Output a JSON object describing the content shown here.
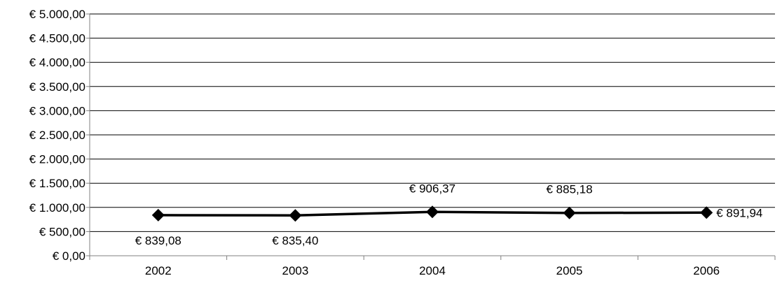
{
  "chart_data": {
    "type": "line",
    "title": "",
    "xlabel": "",
    "ylabel": "",
    "categories": [
      "2002",
      "2003",
      "2004",
      "2005",
      "2006"
    ],
    "series": [
      {
        "values": [
          839.08,
          835.4,
          906.37,
          885.18,
          891.94
        ],
        "labels": [
          "€ 839,08",
          "€ 835,40",
          "€ 906,37",
          "€ 885,18",
          "€ 891,94"
        ],
        "color": "#000000",
        "marker": "diamond"
      }
    ],
    "ylim": [
      0,
      5000
    ],
    "ytick_values": [
      0,
      500,
      1000,
      1500,
      2000,
      2500,
      3000,
      3500,
      4000,
      4500,
      5000
    ],
    "ytick_labels": [
      "€ 0,00",
      "€ 500,00",
      "€ 1.000,00",
      "€ 1.500,00",
      "€ 2.000,00",
      "€ 2.500,00",
      "€ 3.000,00",
      "€ 3.500,00",
      "€ 4.000,00",
      "€ 4.500,00",
      "€ 5.000,00"
    ],
    "grid": true,
    "legend": "none",
    "gridline_color": "#000000",
    "axis_color": "#808080"
  }
}
